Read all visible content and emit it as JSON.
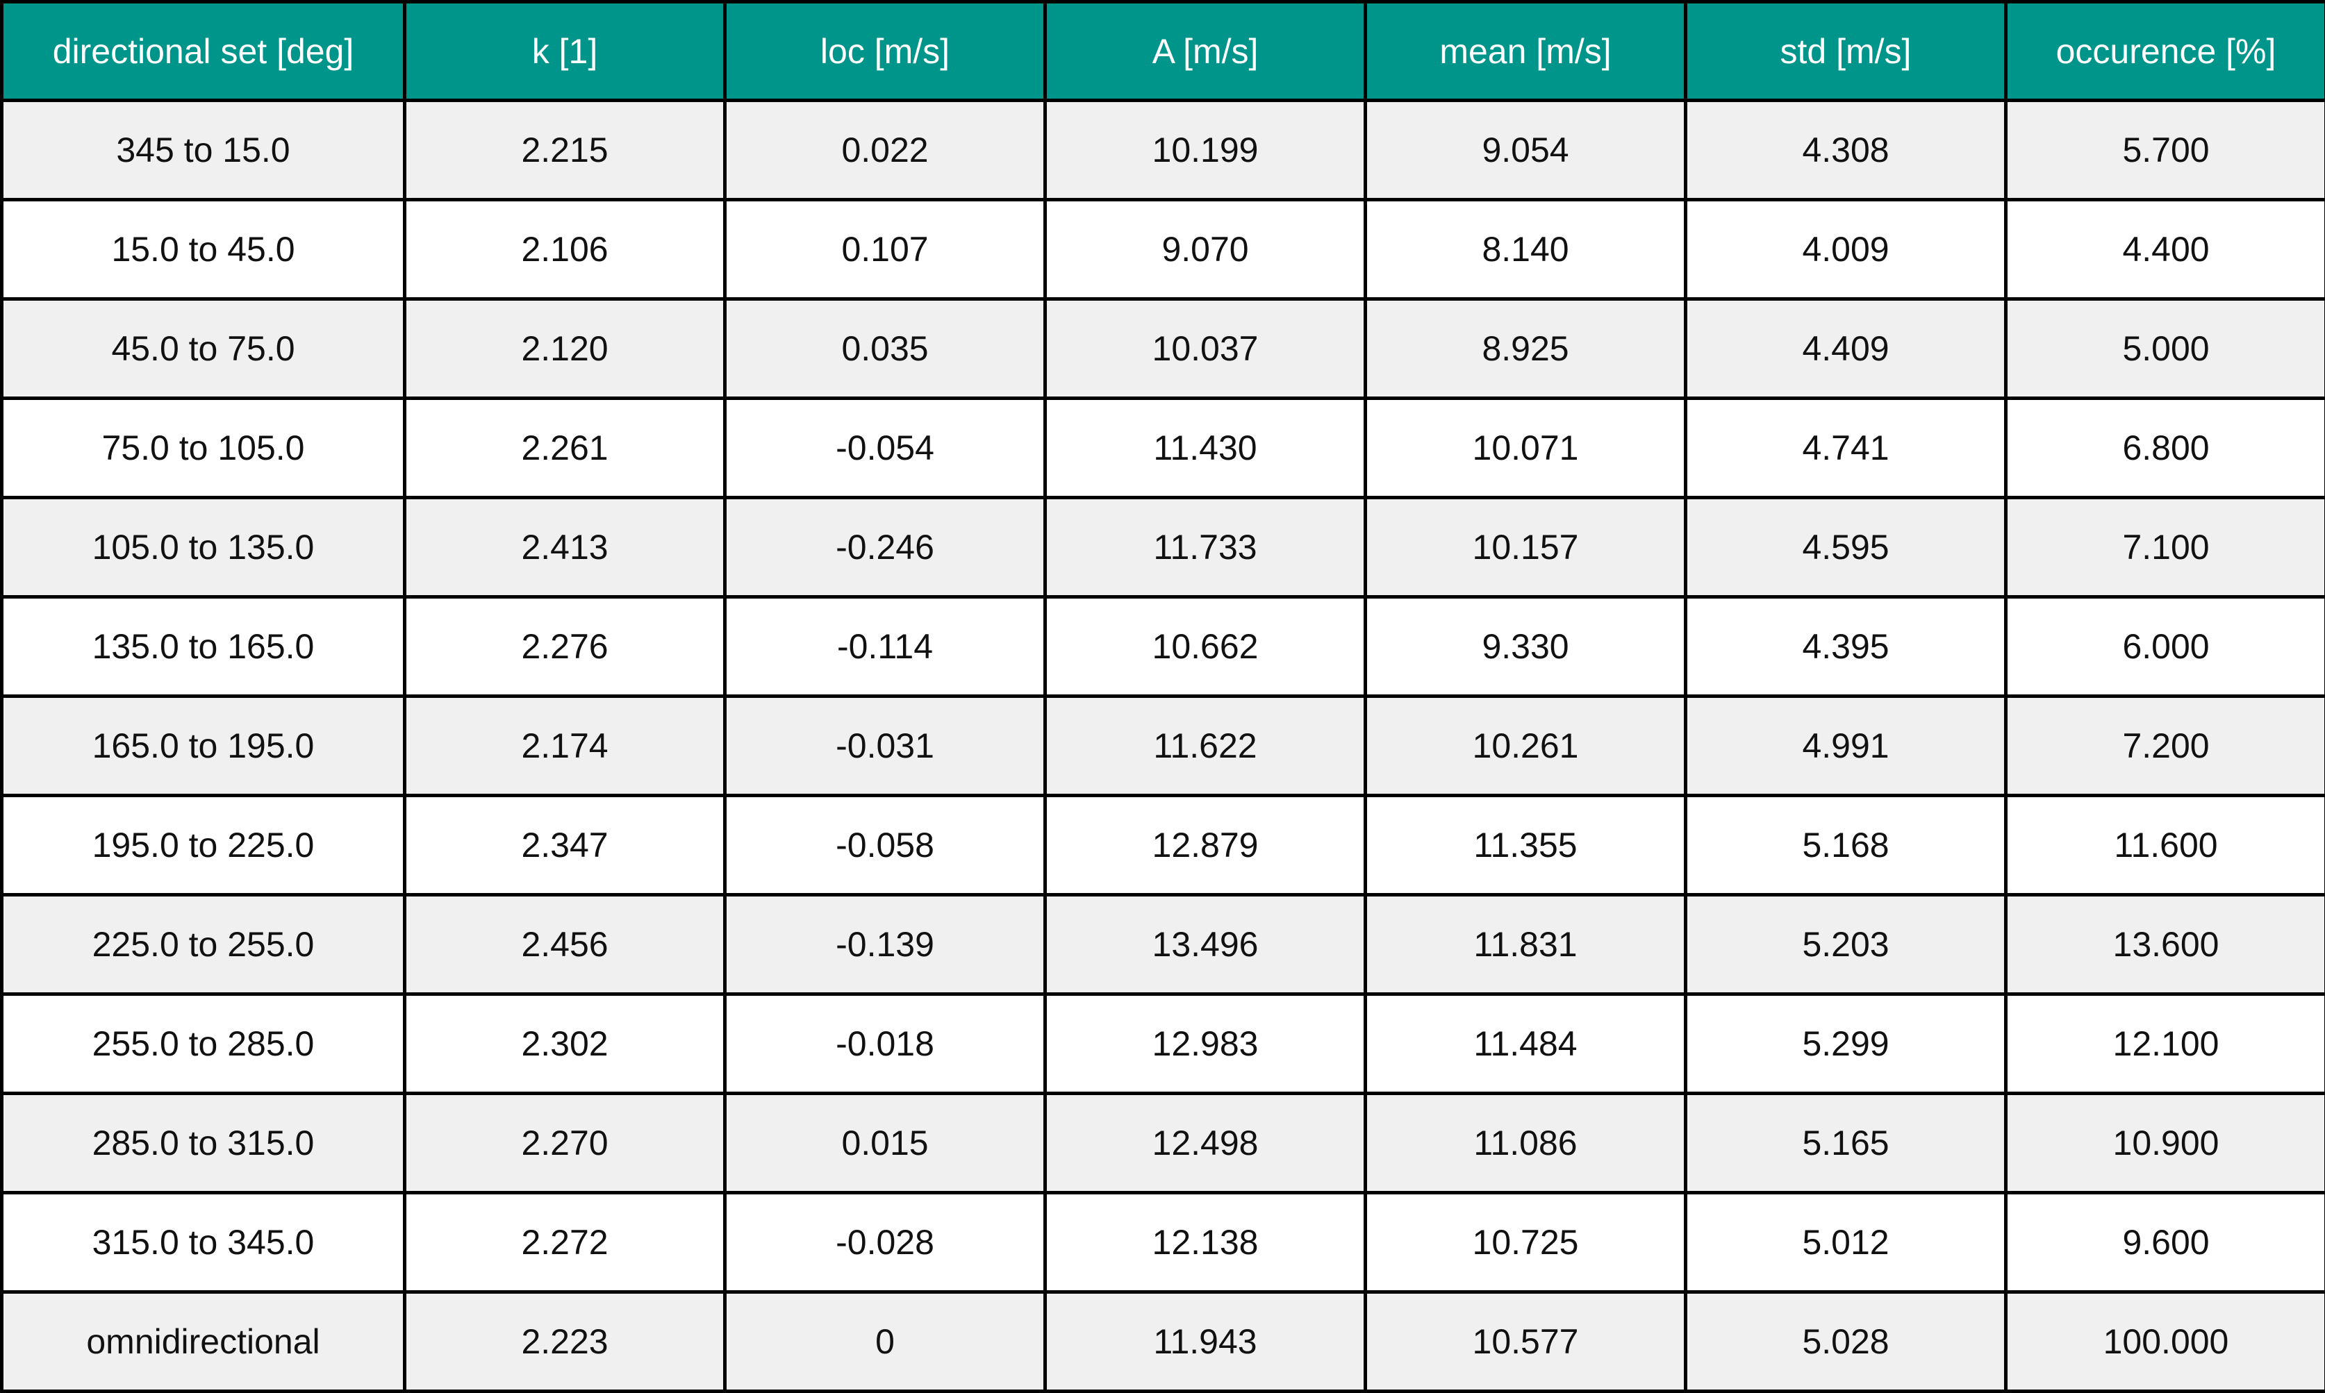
{
  "colors": {
    "header_bg": "#00958a",
    "header_text": "#ffffff",
    "row_odd_bg": "#f0f0f0",
    "row_even_bg": "#ffffff",
    "border": "#000000"
  },
  "chart_data": {
    "type": "table",
    "columns": [
      "directional set [deg]",
      "k [1]",
      "loc [m/s]",
      "A [m/s]",
      "mean [m/s]",
      "std [m/s]",
      "occurence [%]"
    ],
    "rows": [
      [
        "345 to 15.0",
        "2.215",
        "0.022",
        "10.199",
        "9.054",
        "4.308",
        "5.700"
      ],
      [
        "15.0 to 45.0",
        "2.106",
        "0.107",
        "9.070",
        "8.140",
        "4.009",
        "4.400"
      ],
      [
        "45.0 to 75.0",
        "2.120",
        "0.035",
        "10.037",
        "8.925",
        "4.409",
        "5.000"
      ],
      [
        "75.0 to 105.0",
        "2.261",
        "-0.054",
        "11.430",
        "10.071",
        "4.741",
        "6.800"
      ],
      [
        "105.0 to 135.0",
        "2.413",
        "-0.246",
        "11.733",
        "10.157",
        "4.595",
        "7.100"
      ],
      [
        "135.0 to 165.0",
        "2.276",
        "-0.114",
        "10.662",
        "9.330",
        "4.395",
        "6.000"
      ],
      [
        "165.0 to 195.0",
        "2.174",
        "-0.031",
        "11.622",
        "10.261",
        "4.991",
        "7.200"
      ],
      [
        "195.0 to 225.0",
        "2.347",
        "-0.058",
        "12.879",
        "11.355",
        "5.168",
        "11.600"
      ],
      [
        "225.0 to 255.0",
        "2.456",
        "-0.139",
        "13.496",
        "11.831",
        "5.203",
        "13.600"
      ],
      [
        "255.0 to 285.0",
        "2.302",
        "-0.018",
        "12.983",
        "11.484",
        "5.299",
        "12.100"
      ],
      [
        "285.0 to 315.0",
        "2.270",
        "0.015",
        "12.498",
        "11.086",
        "5.165",
        "10.900"
      ],
      [
        "315.0 to 345.0",
        "2.272",
        "-0.028",
        "12.138",
        "10.725",
        "5.012",
        "9.600"
      ],
      [
        "omnidirectional",
        "2.223",
        "0",
        "11.943",
        "10.577",
        "5.028",
        "100.000"
      ]
    ]
  }
}
